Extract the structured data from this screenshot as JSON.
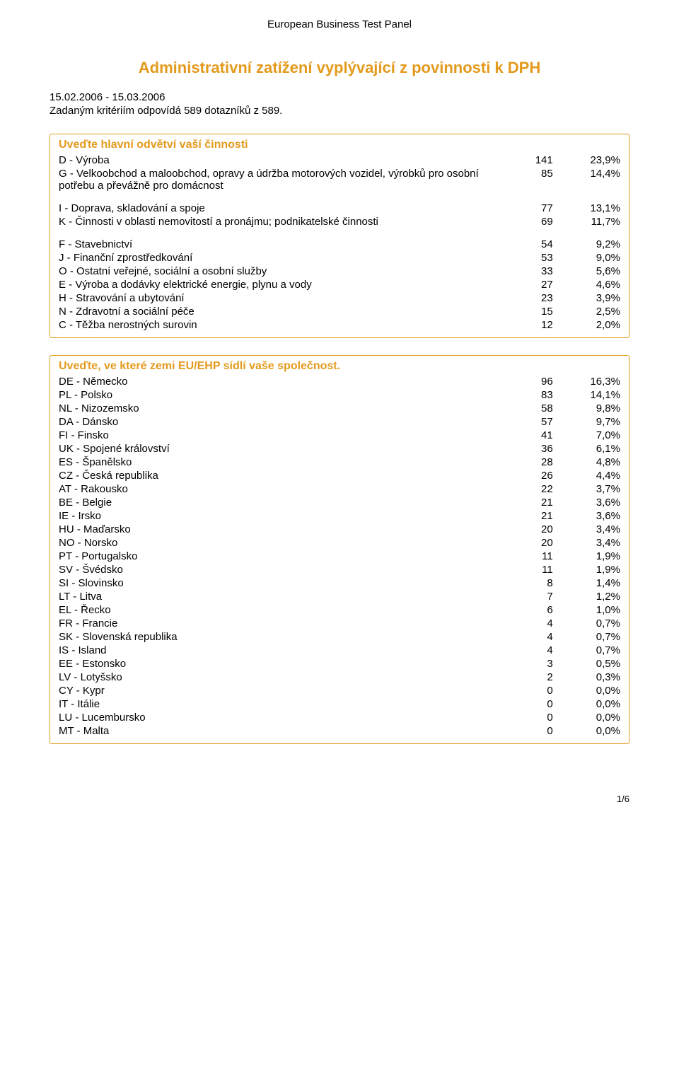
{
  "header": "European Business Test Panel",
  "title": "Administrativní zatížení vyplývající z povinnosti k DPH",
  "date_range": "15.02.2006 - 15.03.2006",
  "criteria_line": "Zadaným kritériím odpovídá 589 dotazníků z 589.",
  "sections": [
    {
      "heading": "Uveďte hlavní odvětví vaší činnosti",
      "rows": [
        {
          "label": "D - Výroba",
          "value": "141",
          "pct": "23,9%",
          "cluster": false
        },
        {
          "label": "G - Velkoobchod a maloobchod, opravy a údržba motorových vozidel, výrobků pro osobní potřebu a převážně pro domácnost",
          "value": "85",
          "pct": "14,4%",
          "cluster": false
        },
        {
          "label": "I - Doprava, skladování a spoje",
          "value": "77",
          "pct": "13,1%",
          "cluster": true
        },
        {
          "label": "K - Činnosti v oblasti nemovitostí a pronájmu; podnikatelské činnosti",
          "value": "69",
          "pct": "11,7%",
          "cluster": false
        },
        {
          "label": "F - Stavebnictví",
          "value": "54",
          "pct": "9,2%",
          "cluster": true
        },
        {
          "label": "J - Finanční zprostředkování",
          "value": "53",
          "pct": "9,0%",
          "cluster": false
        },
        {
          "label": "O - Ostatní veřejné, sociální a osobní služby",
          "value": "33",
          "pct": "5,6%",
          "cluster": false
        },
        {
          "label": "E - Výroba a dodávky elektrické energie, plynu a vody",
          "value": "27",
          "pct": "4,6%",
          "cluster": false
        },
        {
          "label": "H - Stravování a ubytování",
          "value": "23",
          "pct": "3,9%",
          "cluster": false
        },
        {
          "label": "N - Zdravotní a sociální péče",
          "value": "15",
          "pct": "2,5%",
          "cluster": false
        },
        {
          "label": "C - Těžba nerostných surovin",
          "value": "12",
          "pct": "2,0%",
          "cluster": false
        }
      ]
    },
    {
      "heading": "Uveďte, ve které zemi EU/EHP sídlí vaše společnost.",
      "rows": [
        {
          "label": "DE - Německo",
          "value": "96",
          "pct": "16,3%",
          "cluster": false
        },
        {
          "label": "PL - Polsko",
          "value": "83",
          "pct": "14,1%",
          "cluster": false
        },
        {
          "label": "NL - Nizozemsko",
          "value": "58",
          "pct": "9,8%",
          "cluster": false
        },
        {
          "label": "DA - Dánsko",
          "value": "57",
          "pct": "9,7%",
          "cluster": false
        },
        {
          "label": "FI - Finsko",
          "value": "41",
          "pct": "7,0%",
          "cluster": false
        },
        {
          "label": "UK - Spojené království",
          "value": "36",
          "pct": "6,1%",
          "cluster": false
        },
        {
          "label": "ES - Španělsko",
          "value": "28",
          "pct": "4,8%",
          "cluster": false
        },
        {
          "label": "CZ - Česká republika",
          "value": "26",
          "pct": "4,4%",
          "cluster": false
        },
        {
          "label": "AT - Rakousko",
          "value": "22",
          "pct": "3,7%",
          "cluster": false
        },
        {
          "label": "BE - Belgie",
          "value": "21",
          "pct": "3,6%",
          "cluster": false
        },
        {
          "label": "IE - Irsko",
          "value": "21",
          "pct": "3,6%",
          "cluster": false
        },
        {
          "label": "HU - Maďarsko",
          "value": "20",
          "pct": "3,4%",
          "cluster": false
        },
        {
          "label": "NO - Norsko",
          "value": "20",
          "pct": "3,4%",
          "cluster": false
        },
        {
          "label": "PT - Portugalsko",
          "value": "11",
          "pct": "1,9%",
          "cluster": false
        },
        {
          "label": "SV - Švédsko",
          "value": "11",
          "pct": "1,9%",
          "cluster": false
        },
        {
          "label": "SI - Slovinsko",
          "value": "8",
          "pct": "1,4%",
          "cluster": false
        },
        {
          "label": "LT - Litva",
          "value": "7",
          "pct": "1,2%",
          "cluster": false
        },
        {
          "label": "EL - Řecko",
          "value": "6",
          "pct": "1,0%",
          "cluster": false
        },
        {
          "label": "FR - Francie",
          "value": "4",
          "pct": "0,7%",
          "cluster": false
        },
        {
          "label": "SK - Slovenská republika",
          "value": "4",
          "pct": "0,7%",
          "cluster": false
        },
        {
          "label": "IS - Island",
          "value": "4",
          "pct": "0,7%",
          "cluster": false
        },
        {
          "label": "EE - Estonsko",
          "value": "3",
          "pct": "0,5%",
          "cluster": false
        },
        {
          "label": "LV - Lotyšsko",
          "value": "2",
          "pct": "0,3%",
          "cluster": false
        },
        {
          "label": "CY - Kypr",
          "value": "0",
          "pct": "0,0%",
          "cluster": false
        },
        {
          "label": "IT - Itálie",
          "value": "0",
          "pct": "0,0%",
          "cluster": false
        },
        {
          "label": "LU - Lucembursko",
          "value": "0",
          "pct": "0,0%",
          "cluster": false
        },
        {
          "label": "MT - Malta",
          "value": "0",
          "pct": "0,0%",
          "cluster": false
        }
      ]
    }
  ],
  "page_indicator": "1/6"
}
